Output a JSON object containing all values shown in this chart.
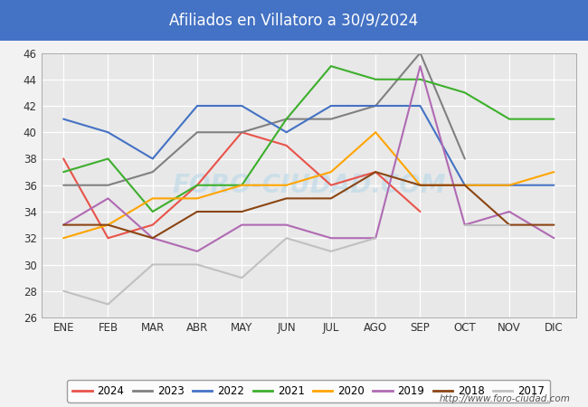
{
  "title": "Afiliados en Villatoro a 30/9/2024",
  "title_bg_color": "#4472c4",
  "title_text_color": "white",
  "ylim": [
    26,
    46
  ],
  "yticks": [
    26,
    28,
    30,
    32,
    34,
    36,
    38,
    40,
    42,
    44,
    46
  ],
  "months": [
    "ENE",
    "FEB",
    "MAR",
    "ABR",
    "MAY",
    "JUN",
    "JUL",
    "AGO",
    "SEP",
    "OCT",
    "NOV",
    "DIC"
  ],
  "series": {
    "2024": {
      "color": "#e8534a",
      "data": [
        38,
        32,
        33,
        36,
        40,
        39,
        36,
        37,
        34,
        null,
        null,
        null
      ]
    },
    "2023": {
      "color": "#808080",
      "data": [
        36,
        36,
        37,
        40,
        40,
        41,
        41,
        42,
        46,
        38,
        null,
        null
      ]
    },
    "2022": {
      "color": "#4472c4",
      "data": [
        41,
        40,
        38,
        42,
        42,
        40,
        42,
        42,
        42,
        36,
        36,
        36
      ]
    },
    "2021": {
      "color": "#3daf2c",
      "data": [
        37,
        38,
        34,
        36,
        36,
        41,
        45,
        44,
        44,
        43,
        41,
        41
      ]
    },
    "2020": {
      "color": "#ffa500",
      "data": [
        32,
        33,
        35,
        35,
        36,
        36,
        37,
        40,
        36,
        36,
        36,
        37
      ]
    },
    "2019": {
      "color": "#b06ab3",
      "data": [
        33,
        35,
        32,
        31,
        33,
        33,
        32,
        32,
        45,
        33,
        34,
        32
      ]
    },
    "2018": {
      "color": "#8b4513",
      "data": [
        33,
        33,
        32,
        34,
        34,
        35,
        35,
        37,
        36,
        36,
        33,
        33
      ]
    },
    "2017": {
      "color": "#c0c0c0",
      "data": [
        28,
        27,
        30,
        30,
        29,
        32,
        31,
        32,
        null,
        33,
        33,
        null
      ]
    }
  },
  "watermark": "FORO-CIUDAD.COM",
  "footer_url": "http://www.foro-ciudad.com",
  "bg_color": "#f2f2f2",
  "plot_bg_color": "#e8e8e8",
  "grid_color": "white"
}
